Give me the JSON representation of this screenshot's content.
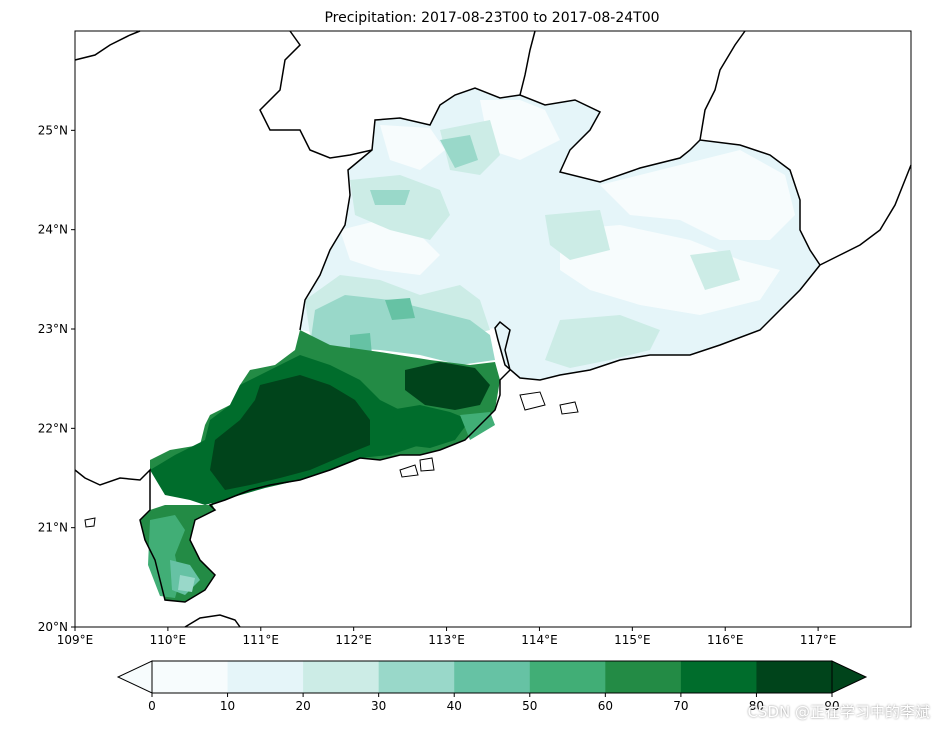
{
  "map": {
    "title": "Precipitation: 2017-08-23T00 to 2017-08-24T00",
    "lon_ticks": [
      "109°E",
      "110°E",
      "111°E",
      "112°E",
      "113°E",
      "114°E",
      "115°E",
      "116°E",
      "117°E"
    ],
    "lat_ticks": [
      "20°N",
      "21°N",
      "22°N",
      "23°N",
      "24°N",
      "25°N"
    ],
    "lon_range": [
      109,
      118
    ],
    "lat_range": [
      20,
      26
    ]
  },
  "colorbar": {
    "levels": [
      0,
      10,
      20,
      30,
      40,
      50,
      60,
      70,
      80,
      90
    ],
    "labels": [
      "0",
      "10",
      "20",
      "30",
      "40",
      "50",
      "60",
      "70",
      "80",
      "90"
    ],
    "colors": [
      "#f7fcfd",
      "#e5f5f9",
      "#ccece6",
      "#99d8c9",
      "#66c2a4",
      "#41ae76",
      "#238b45",
      "#006d2c",
      "#00441b"
    ],
    "extend": "both"
  },
  "watermark": "CSDN @正在学习中的李斌"
}
